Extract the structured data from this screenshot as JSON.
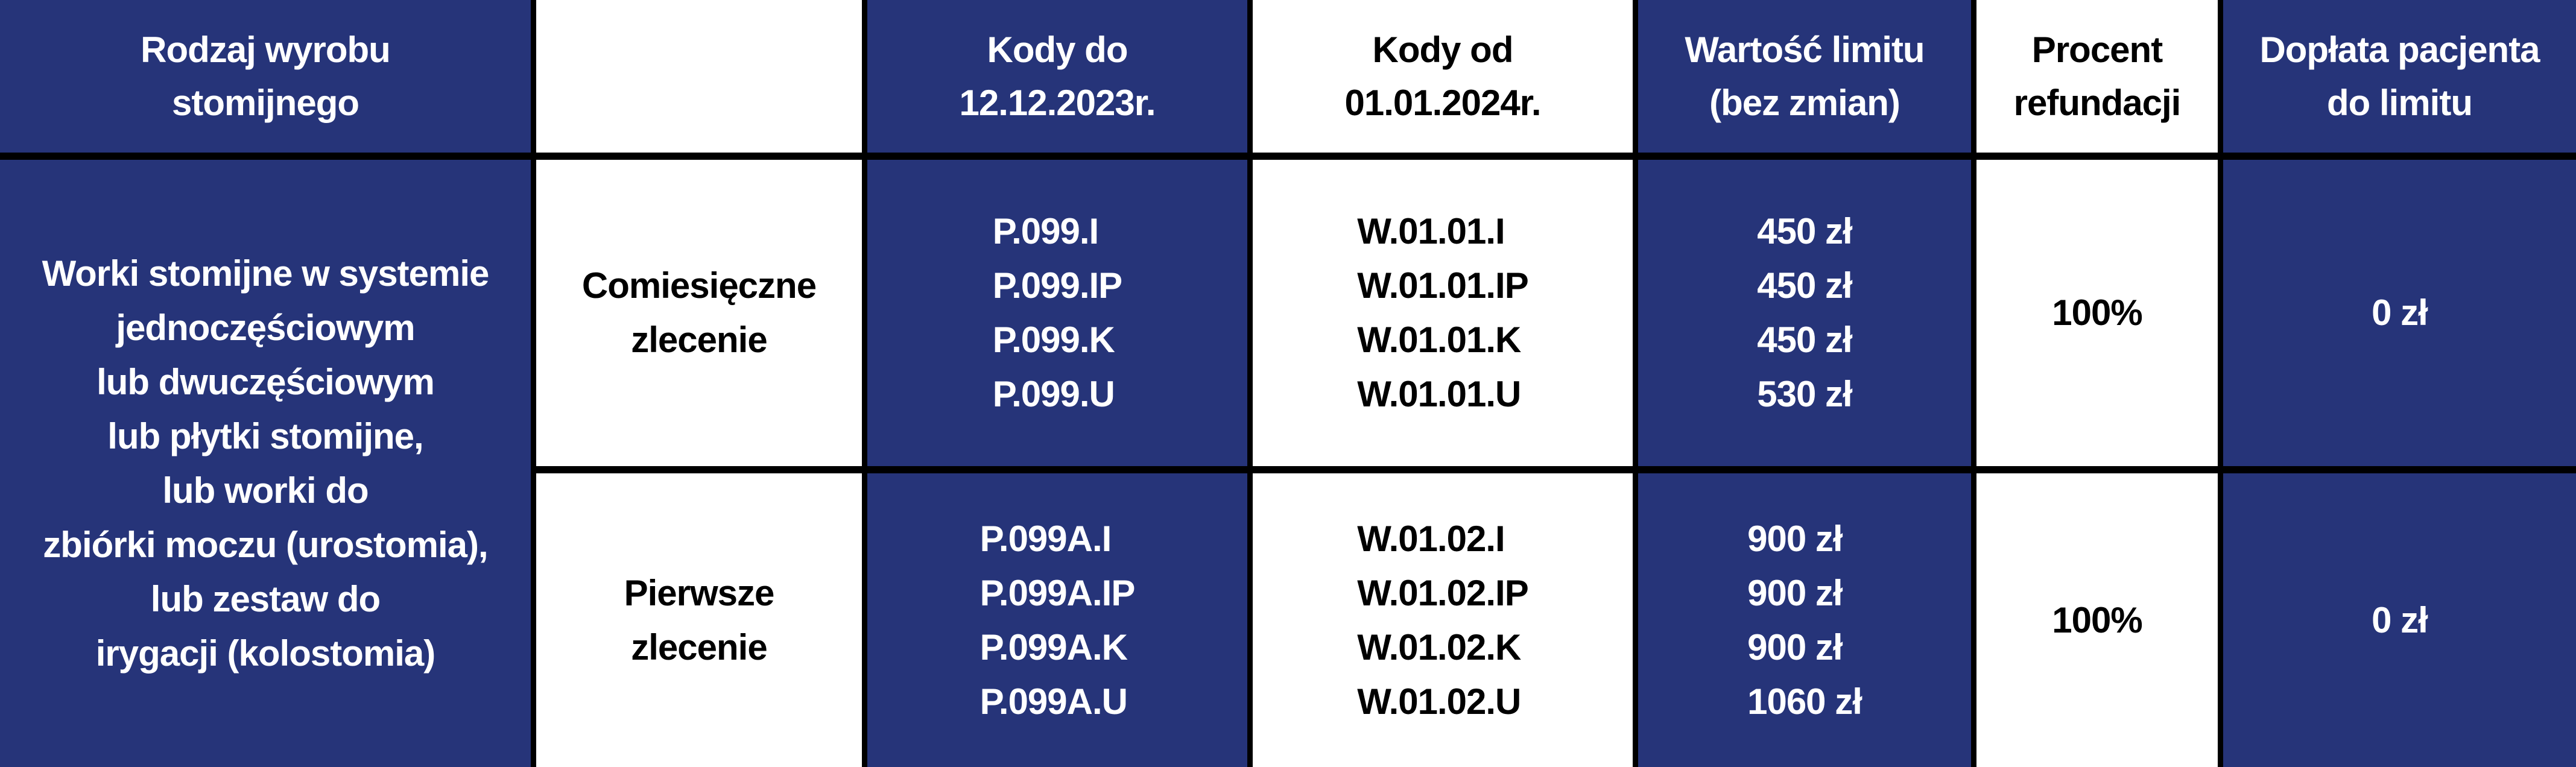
{
  "header": {
    "product_type": [
      "Rodzaj wyrobu",
      "stomijnego"
    ],
    "empty": "",
    "codes_until": [
      "Kody do",
      "12.12.2023r."
    ],
    "codes_from": [
      "Kody od",
      "01.01.2024r."
    ],
    "limit_value": [
      "Wartość limitu",
      "(bez zmian)"
    ],
    "refund_percent": [
      "Procent",
      "refundacji"
    ],
    "patient_copay": [
      "Dopłata pacjenta",
      "do limitu"
    ]
  },
  "product_description": [
    "Worki stomijne w systemie",
    "jednoczęściowym",
    "lub dwuczęściowym",
    "lub płytki stomijne,",
    "lub worki do",
    "zbiórki moczu (urostomia),",
    "lub zestaw do",
    "irygacji (kolostomia)"
  ],
  "rows": [
    {
      "order_type": [
        "Comiesięczne",
        "zlecenie"
      ],
      "old_codes": [
        "P.099.I",
        "P.099.IP",
        "P.099.K",
        "P.099.U"
      ],
      "new_codes": [
        "W.01.01.I",
        "W.01.01.IP",
        "W.01.01.K",
        "W.01.01.U"
      ],
      "limits": [
        "450 zł",
        "450 zł",
        "450 zł",
        "530 zł"
      ],
      "refund": "100%",
      "copay": "0 zł"
    },
    {
      "order_type": [
        "Pierwsze",
        "zlecenie"
      ],
      "old_codes": [
        "P.099A.I",
        "P.099A.IP",
        "P.099A.K",
        "P.099A.U"
      ],
      "new_codes": [
        "W.01.02.I",
        "W.01.02.IP",
        "W.01.02.K",
        "W.01.02.U"
      ],
      "limits": [
        "900 zł",
        "900 zł",
        "900 zł",
        "1060 zł"
      ],
      "refund": "100%",
      "copay": "0 zł"
    }
  ],
  "colors": {
    "blue": "#263479",
    "white": "#ffffff",
    "border": "#000000"
  }
}
